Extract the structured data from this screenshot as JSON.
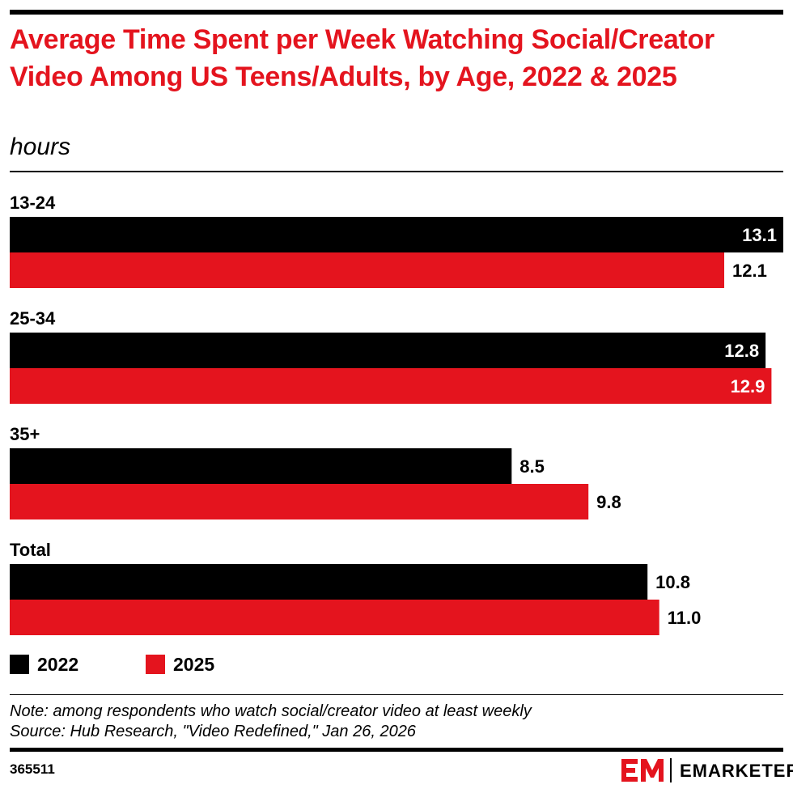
{
  "header": {
    "title": "Average Time Spent per Week Watching Social/Creator Video Among US Teens/Adults, by Age, 2022 & 2025",
    "subtitle": "hours"
  },
  "chart_data": {
    "type": "bar",
    "orientation": "horizontal",
    "title": "Average Time Spent per Week Watching Social/Creator Video Among US Teens/Adults, by Age, 2022 & 2025",
    "subtitle": "hours",
    "categories": [
      "13-24",
      "25-34",
      "35+",
      "Total"
    ],
    "series": [
      {
        "name": "2022",
        "color": "#000000",
        "values": [
          13.1,
          12.8,
          8.5,
          10.8
        ]
      },
      {
        "name": "2025",
        "color": "#e4141e",
        "values": [
          12.1,
          12.9,
          9.8,
          11.0
        ]
      }
    ],
    "xlim": [
      0,
      13.1
    ],
    "grid": false,
    "legend_position": "bottom-left"
  },
  "footer": {
    "note": "Note: among respondents who watch social/creator video at least weekly",
    "source": "Source: Hub Research, \"Video Redefined,\" Jan 26, 2026",
    "chart_id": "365511",
    "brand": "EMARKETER"
  },
  "colors": {
    "accent": "#e4141e",
    "text": "#000000",
    "background": "#ffffff"
  }
}
